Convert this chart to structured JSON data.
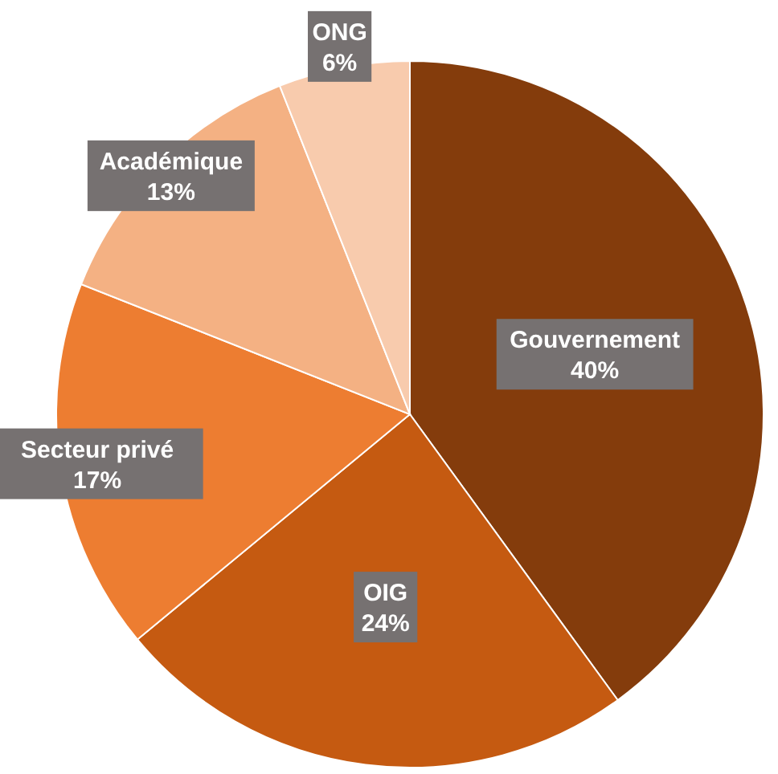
{
  "chart_data": {
    "type": "pie",
    "categories": [
      "Gouvernement",
      "OIG",
      "Secteur privé",
      "Académique",
      "ONG"
    ],
    "values": [
      40,
      24,
      17,
      13,
      6
    ],
    "colors": [
      "#843c0c",
      "#c55a11",
      "#ed7d31",
      "#f4b183",
      "#f8cbad"
    ],
    "value_labels": [
      "40%",
      "24%",
      "17%",
      "13%",
      "6%"
    ]
  }
}
